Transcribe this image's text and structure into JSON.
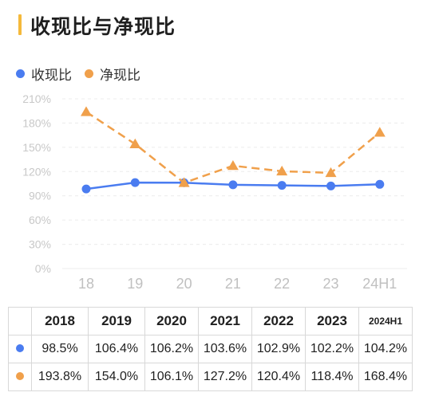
{
  "title": "收现比与净现比",
  "colors": {
    "accent_bar": "#f5b93b",
    "series1": "#4a7cf0",
    "series2": "#f0a04b"
  },
  "chart_data": {
    "type": "line",
    "categories": [
      "18",
      "19",
      "20",
      "21",
      "22",
      "23",
      "24H1"
    ],
    "y_ticks": [
      "0%",
      "30%",
      "60%",
      "90%",
      "120%",
      "150%",
      "180%",
      "210%"
    ],
    "ylim": [
      0,
      210
    ],
    "grid": true,
    "legend_position": "top-left",
    "series": [
      {
        "name": "收现比",
        "color": "#4a7cf0",
        "style": "solid",
        "marker": "circle",
        "values": [
          98.5,
          106.4,
          106.2,
          103.6,
          102.9,
          102.2,
          104.2
        ]
      },
      {
        "name": "净现比",
        "color": "#f0a04b",
        "style": "dashed",
        "marker": "triangle",
        "values": [
          193.8,
          154.0,
          106.1,
          127.2,
          120.4,
          118.4,
          168.4
        ]
      }
    ]
  },
  "table": {
    "headers": [
      "2018",
      "2019",
      "2020",
      "2021",
      "2022",
      "2023",
      "2024H1"
    ],
    "rows": [
      [
        "98.5%",
        "106.4%",
        "106.2%",
        "103.6%",
        "102.9%",
        "102.2%",
        "104.2%"
      ],
      [
        "193.8%",
        "154.0%",
        "106.1%",
        "127.2%",
        "120.4%",
        "118.4%",
        "168.4%"
      ]
    ]
  }
}
